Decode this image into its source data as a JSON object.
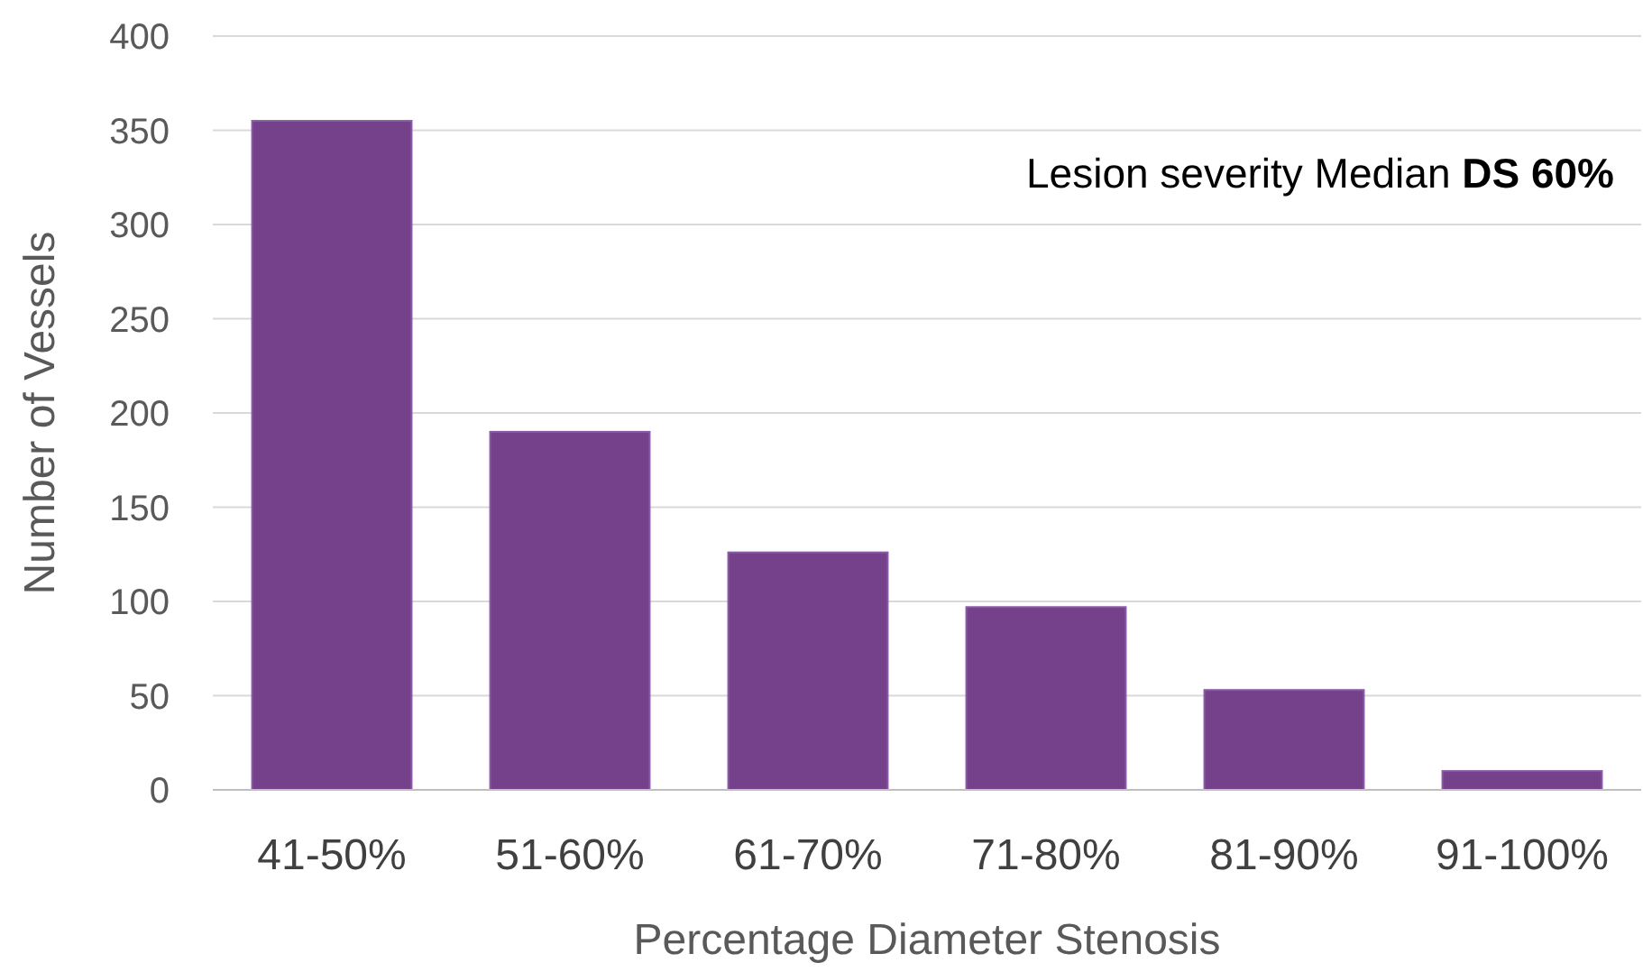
{
  "chart_data": {
    "type": "bar",
    "xlabel": "Percentage Diameter Stenosis",
    "ylabel": "Number of Vessels",
    "categories": [
      "41-50%",
      "51-60%",
      "61-70%",
      "71-80%",
      "81-90%",
      "91-100%"
    ],
    "values": [
      355,
      190,
      126,
      97,
      53,
      10
    ],
    "color": "#74418a",
    "ylim": [
      0,
      400
    ],
    "yticks": [
      0,
      50,
      100,
      150,
      200,
      250,
      300,
      350,
      400
    ],
    "grid": "y",
    "annotations": [
      "Lesion severity Median DS 60%"
    ]
  }
}
